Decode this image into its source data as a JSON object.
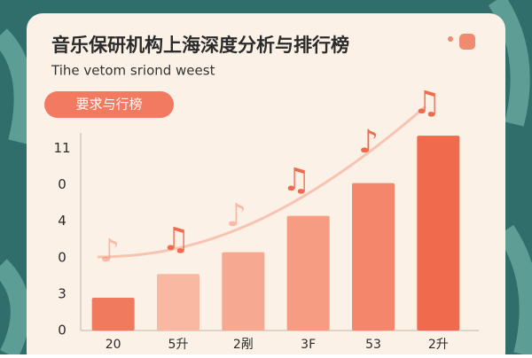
{
  "chart_data": {
    "type": "bar",
    "title": "音乐保研机构上海深度分析与排行榜",
    "subtitle": "Tihe vetom sriond weest",
    "button": "要求与行榜",
    "categories": [
      "20",
      "5升",
      "2剐",
      "3F",
      "53",
      "2升"
    ],
    "values": [
      0.9,
      1.55,
      2.15,
      3.15,
      4.05,
      5.35
    ],
    "colors": [
      "#f07a5e",
      "#f8b8a2",
      "#f6a890",
      "#f69c82",
      "#f4866c",
      "#f06a4e"
    ],
    "ylim": [
      0,
      5.5
    ],
    "yticks": [
      0,
      {
        "value": 1,
        "label": "3"
      },
      {
        "value": 2,
        "label": "0"
      },
      {
        "value": 3,
        "label": "4"
      },
      {
        "value": 4,
        "label": "0"
      },
      {
        "value": 5,
        "label": "11"
      }
    ]
  }
}
